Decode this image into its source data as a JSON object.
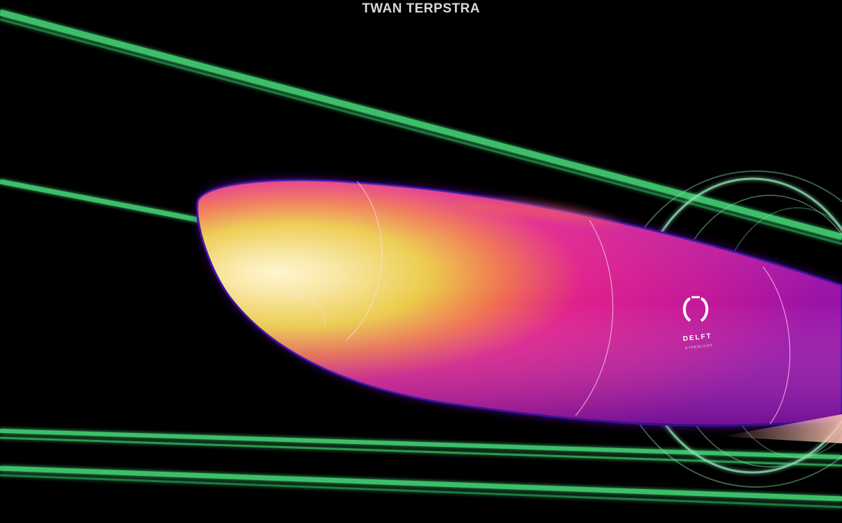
{
  "header": {
    "author": "TWAN TERPSTRA"
  },
  "logo": {
    "name": "DELFT",
    "subtitle": "HYPERLOOP",
    "icon": "delft-hyperloop-logo-icon"
  },
  "colors": {
    "background": "#000000",
    "tube_green": "#3dbf6a",
    "pod_hot": "#fff2b0",
    "pod_mid": "#e8c040",
    "pod_cool": "#e0208c",
    "pod_edge": "#3a10a0",
    "ring": "#8fe0b0"
  }
}
